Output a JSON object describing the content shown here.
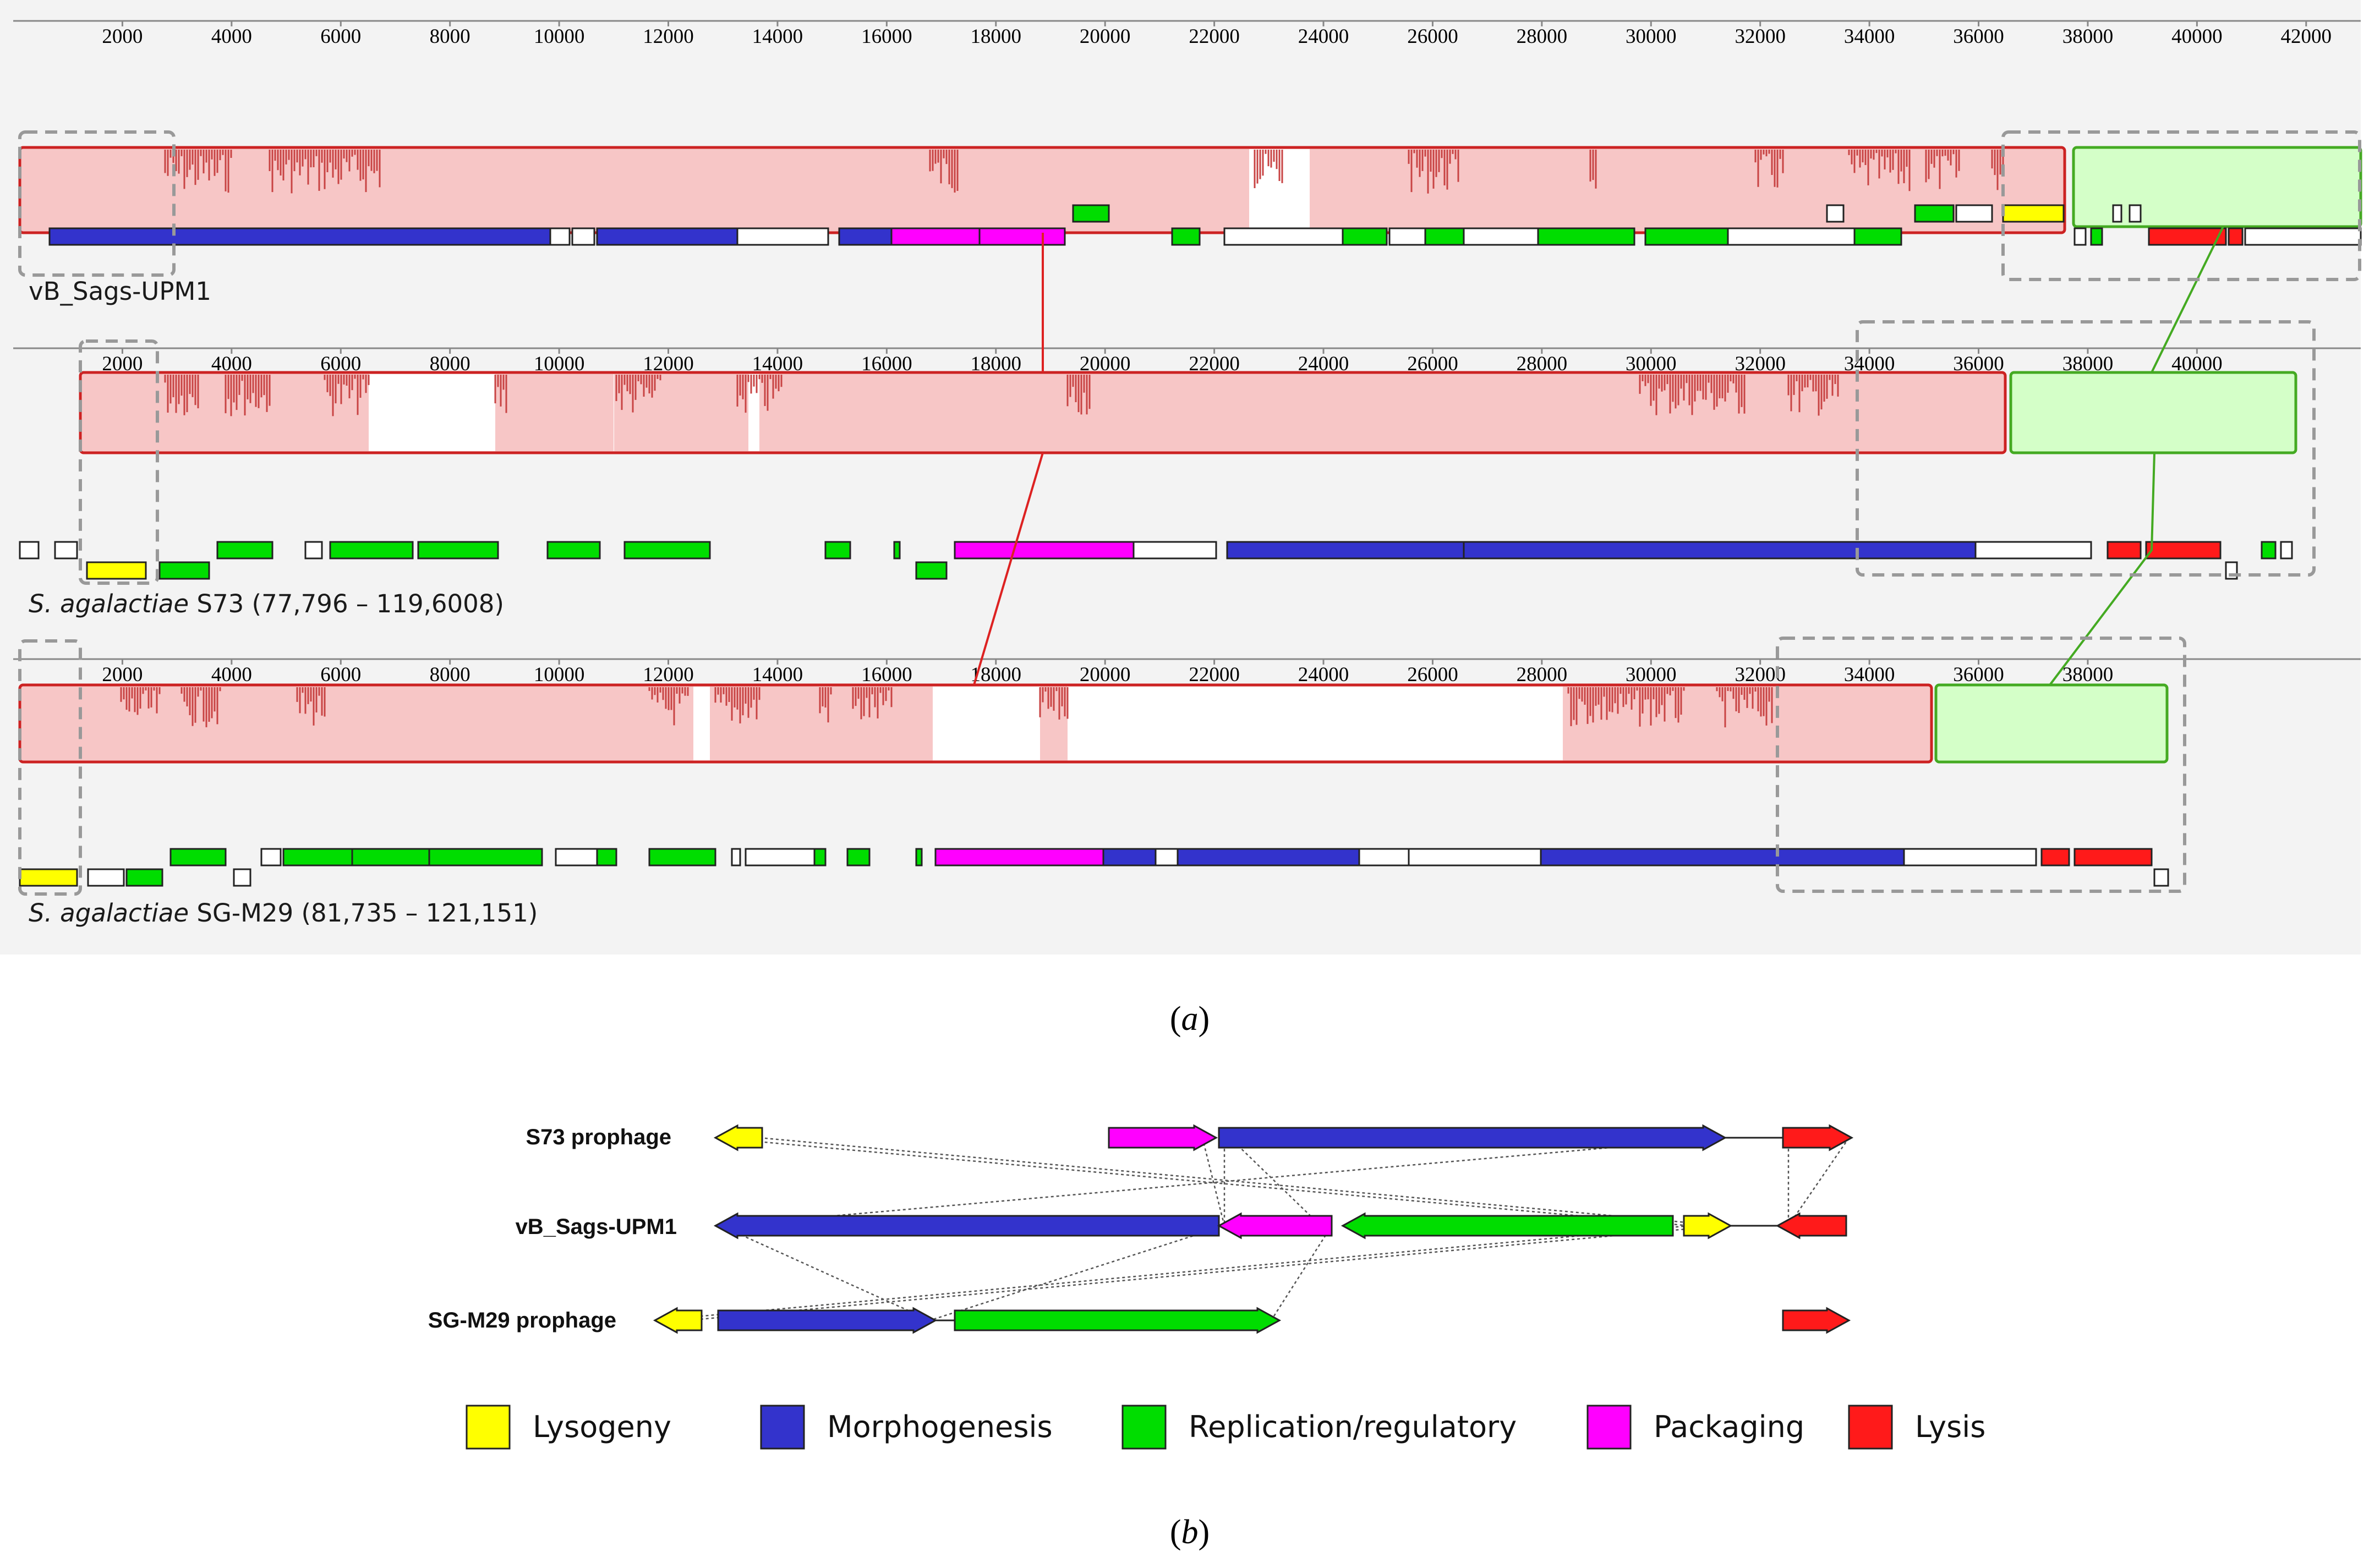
{
  "colors": {
    "lysogeny": "#ffff00",
    "morphogenesis": "#3333cc",
    "replication": "#00dd00",
    "packaging": "#ff00ff",
    "lysis": "#ff1a1a",
    "lcb_red_fill": "#f7c6c6",
    "lcb_red_stroke": "#cc2222",
    "lcb_green_fill": "#d4ffc8",
    "lcb_green_stroke": "#44aa22",
    "similarity": "#c84444"
  },
  "panel_a": {
    "label_paren_open": "(",
    "label_letter": "a",
    "label_paren_close": ")",
    "tracks": [
      {
        "name": "vB_Sags-UPM1",
        "name_italic": "",
        "name_rest": "vB_Sags-UPM1",
        "ticks": [
          "2000",
          "4000",
          "6000",
          "8000",
          "10000",
          "12000",
          "14000",
          "16000",
          "18000",
          "20000",
          "22000",
          "24000",
          "26000",
          "28000",
          "30000",
          "32000",
          "34000",
          "36000",
          "38000",
          "40000",
          "42000"
        ],
        "axis_range": [
          0,
          43000
        ]
      },
      {
        "name": "S. agalactiae S73 (77,796 – 119,6008)",
        "name_italic": "S. agalactiae",
        "name_rest": " S73 (77,796 – 119,6008)",
        "ticks": [
          "2000",
          "4000",
          "6000",
          "8000",
          "10000",
          "12000",
          "14000",
          "16000",
          "18000",
          "20000",
          "22000",
          "24000",
          "26000",
          "28000",
          "30000",
          "32000",
          "34000",
          "36000",
          "38000",
          "40000"
        ],
        "axis_range": [
          0,
          43000
        ]
      },
      {
        "name": "S. agalactiae SG-M29 (81,735 – 121,151)",
        "name_italic": "S. agalactiae",
        "name_rest": " SG-M29 (81,735 – 121,151)",
        "ticks": [
          "2000",
          "4000",
          "6000",
          "8000",
          "10000",
          "12000",
          "14000",
          "16000",
          "18000",
          "20000",
          "22000",
          "24000",
          "26000",
          "28000",
          "30000",
          "32000",
          "34000",
          "36000",
          "38000"
        ],
        "axis_range": [
          0,
          43000
        ]
      }
    ]
  },
  "panel_b": {
    "label_paren_open": "(",
    "label_letter": "b",
    "label_paren_close": ")",
    "rows": [
      {
        "label": "S73 prophage"
      },
      {
        "label": "vB_Sags-UPM1"
      },
      {
        "label": "SG-M29 prophage"
      }
    ],
    "legend": [
      {
        "label": "Lysogeny",
        "color_key": "lysogeny"
      },
      {
        "label": "Morphogenesis",
        "color_key": "morphogenesis"
      },
      {
        "label": "Replication/regulatory",
        "color_key": "replication"
      },
      {
        "label": "Packaging",
        "color_key": "packaging"
      },
      {
        "label": "Lysis",
        "color_key": "lysis"
      }
    ]
  }
}
